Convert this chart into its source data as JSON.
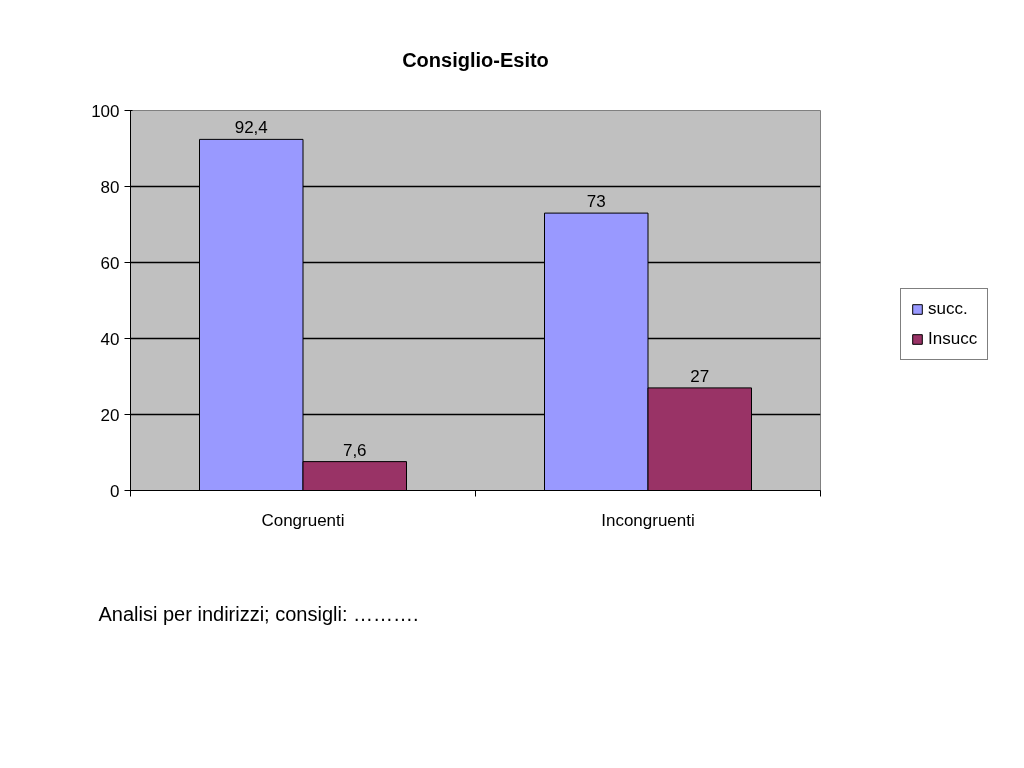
{
  "chart_data": {
    "type": "bar",
    "title": "Consiglio-Esito",
    "categories": [
      "Congruenti",
      "Incongruenti"
    ],
    "series": [
      {
        "name": "succ.",
        "color": "#9999ff",
        "values": [
          92.4,
          73
        ],
        "value_labels": [
          "92,4",
          "73"
        ]
      },
      {
        "name": "Insucc",
        "color": "#993366",
        "values": [
          7.6,
          27
        ],
        "value_labels": [
          "7,6",
          "27"
        ]
      }
    ],
    "ylim": [
      0,
      100
    ],
    "yticks": [
      0,
      20,
      40,
      60,
      80,
      100
    ],
    "grid": "y",
    "legend": "right",
    "annotations": [
      "Analisi per indirizzi; consigli: ………."
    ]
  }
}
